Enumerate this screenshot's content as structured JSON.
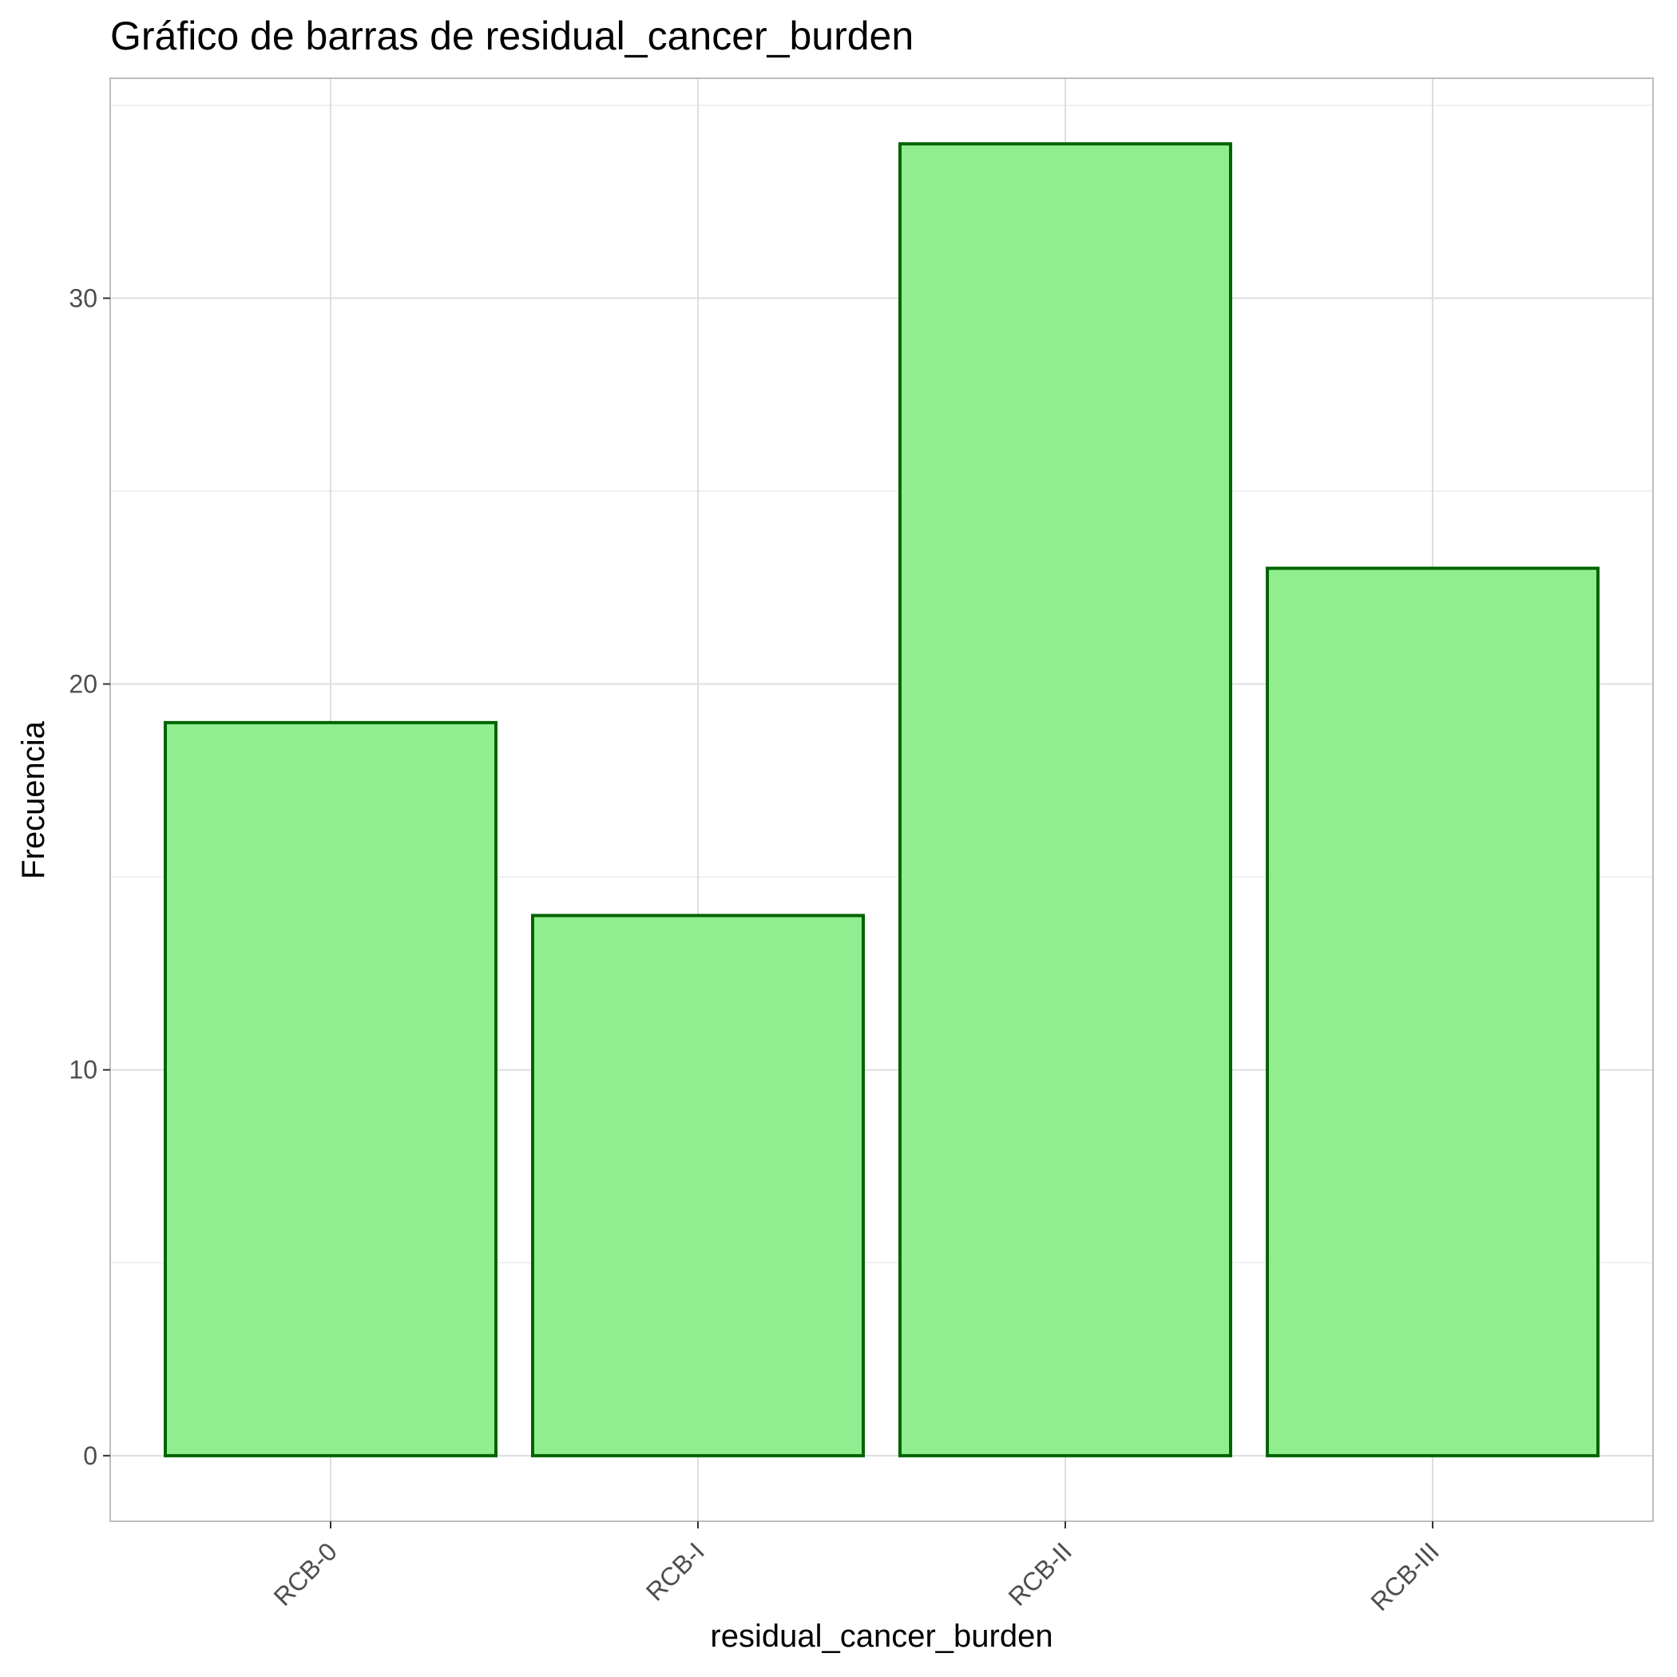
{
  "chart_data": {
    "type": "bar",
    "title": "Gráfico de barras de residual_cancer_burden",
    "xlabel": "residual_cancer_burden",
    "ylabel": "Frecuencia",
    "categories": [
      "RCB-0",
      "RCB-I",
      "RCB-II",
      "RCB-III"
    ],
    "values": [
      19,
      14,
      34,
      23
    ],
    "yticks": [
      "0",
      "10",
      "20",
      "30"
    ],
    "ylim": [
      -1.7,
      35.7
    ],
    "grid": true,
    "bar_fill": "#90ee90",
    "bar_stroke": "#006400"
  }
}
